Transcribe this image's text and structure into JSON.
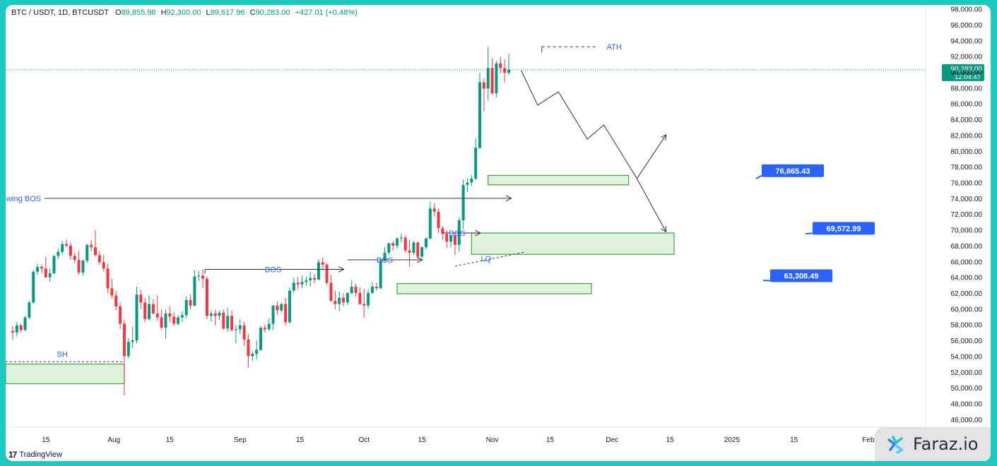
{
  "symbol": {
    "name": "BTC / USDT, 1D, BTCUSDT",
    "o_label": "O",
    "o": "89,855.98",
    "h_label": "H",
    "h": "92,300.00",
    "l_label": "L",
    "l": "89,617.96",
    "c_label": "C",
    "c": "90,283.00",
    "change": "+427.01 (+0.48%)"
  },
  "branding": {
    "tradingview": "TradingView",
    "watermark": "Faraz.io"
  },
  "colors": {
    "up": "#089981",
    "down": "#f23645",
    "zone_fill": "#dff2dc",
    "zone_stroke": "#43a047",
    "label_blue": "#2962ff",
    "text_blue": "#2962ff",
    "price_tag": "#089981",
    "frame": "#1ec9bf"
  },
  "chart_data": {
    "type": "candlestick",
    "y_axis": {
      "ticks": [
        "98,000.00",
        "96,000.00",
        "94,000.00",
        "92,000.00",
        "90,000.00",
        "88,000.00",
        "86,000.00",
        "84,000.00",
        "82,000.00",
        "80,000.00",
        "78,000.00",
        "76,000.00",
        "74,000.00",
        "72,000.00",
        "70,000.00",
        "68,000.00",
        "66,000.00",
        "64,000.00",
        "62,000.00",
        "60,000.00",
        "58,000.00",
        "56,000.00",
        "54,000.00",
        "52,000.00",
        "50,000.00",
        "48,000.00",
        "46,000.00"
      ],
      "range": [
        45000,
        98500
      ]
    },
    "x_axis": {
      "ticks": [
        "15",
        "Aug",
        "15",
        "Sep",
        "15",
        "Oct",
        "15",
        "Nov",
        "15",
        "Dec",
        "15",
        "2025",
        "15",
        "Feb"
      ]
    },
    "current_price": {
      "value": "90,283.00",
      "countdown": "12:04:47"
    },
    "candles": [
      [
        57200,
        57800,
        56100,
        57000
      ],
      [
        57000,
        58300,
        56500,
        57900
      ],
      [
        57900,
        58100,
        57000,
        57300
      ],
      [
        57300,
        59100,
        57200,
        58900
      ],
      [
        58900,
        61000,
        58700,
        60800
      ],
      [
        60800,
        64900,
        60600,
        64700
      ],
      [
        64700,
        65700,
        64300,
        65300
      ],
      [
        65300,
        65600,
        64500,
        65100
      ],
      [
        65100,
        66600,
        63900,
        64000
      ],
      [
        64000,
        65100,
        63400,
        64500
      ],
      [
        64500,
        66800,
        64400,
        66700
      ],
      [
        66700,
        67600,
        66300,
        67200
      ],
      [
        67200,
        68600,
        66900,
        68200
      ],
      [
        68200,
        68800,
        67800,
        68000
      ],
      [
        68000,
        68400,
        66200,
        66700
      ],
      [
        66700,
        67100,
        65800,
        66200
      ],
      [
        66200,
        67400,
        64300,
        64600
      ],
      [
        64600,
        66300,
        64200,
        66100
      ],
      [
        66100,
        68200,
        65800,
        68100
      ],
      [
        68100,
        68700,
        67300,
        67800
      ],
      [
        67800,
        70000,
        66600,
        66800
      ],
      [
        66800,
        67300,
        65600,
        65900
      ],
      [
        65900,
        66800,
        64700,
        65100
      ],
      [
        65100,
        65700,
        62000,
        62600
      ],
      [
        62600,
        63800,
        61300,
        61700
      ],
      [
        61700,
        62300,
        59800,
        60300
      ],
      [
        60300,
        60800,
        57400,
        58100
      ],
      [
        58100,
        58600,
        49000,
        54000
      ],
      [
        54000,
        56300,
        53700,
        55800
      ],
      [
        55800,
        57700,
        55000,
        56000
      ],
      [
        56000,
        62800,
        55600,
        61800
      ],
      [
        61800,
        62400,
        60000,
        60800
      ],
      [
        60800,
        61400,
        58300,
        58700
      ],
      [
        58700,
        61700,
        58500,
        60600
      ],
      [
        60600,
        61200,
        59300,
        59400
      ],
      [
        59400,
        61700,
        58500,
        58900
      ],
      [
        58900,
        59900,
        57300,
        57600
      ],
      [
        57600,
        59900,
        56200,
        59400
      ],
      [
        59400,
        60300,
        58300,
        59000
      ],
      [
        59000,
        59500,
        57800,
        58100
      ],
      [
        58100,
        59200,
        57900,
        58900
      ],
      [
        58900,
        59700,
        58300,
        59200
      ],
      [
        59200,
        61600,
        58800,
        61100
      ],
      [
        61100,
        61800,
        59900,
        60400
      ],
      [
        60400,
        64900,
        60300,
        64100
      ],
      [
        64100,
        64800,
        63500,
        64200
      ],
      [
        64200,
        65000,
        62600,
        63800
      ],
      [
        63800,
        64100,
        58700,
        59100
      ],
      [
        59100,
        59800,
        58400,
        59400
      ],
      [
        59400,
        59900,
        57900,
        59100
      ],
      [
        59100,
        59800,
        58600,
        59500
      ],
      [
        59500,
        59900,
        57300,
        57500
      ],
      [
        57500,
        60100,
        57100,
        59100
      ],
      [
        59100,
        59800,
        57100,
        57300
      ],
      [
        57300,
        58000,
        55600,
        57400
      ],
      [
        57400,
        58700,
        56800,
        57900
      ],
      [
        57900,
        58400,
        55300,
        56100
      ],
      [
        56100,
        56800,
        52500,
        54000
      ],
      [
        54000,
        54600,
        53400,
        54300
      ],
      [
        54300,
        56000,
        53600,
        54800
      ],
      [
        54800,
        57800,
        54600,
        57600
      ],
      [
        57600,
        58000,
        57000,
        57400
      ],
      [
        57400,
        58800,
        57200,
        58100
      ],
      [
        58100,
        60500,
        57300,
        60400
      ],
      [
        60400,
        60900,
        59200,
        59800
      ],
      [
        59800,
        60800,
        59500,
        60600
      ],
      [
        60600,
        61400,
        57900,
        58300
      ],
      [
        58300,
        62700,
        58100,
        62300
      ],
      [
        62300,
        63900,
        62000,
        63300
      ],
      [
        63300,
        64000,
        62500,
        63100
      ],
      [
        63100,
        64200,
        62600,
        63400
      ],
      [
        63400,
        64100,
        62900,
        63600
      ],
      [
        63600,
        64700,
        62800,
        63900
      ],
      [
        63900,
        64400,
        63200,
        63700
      ],
      [
        63700,
        66300,
        63600,
        65900
      ],
      [
        65900,
        66500,
        65000,
        65600
      ],
      [
        65600,
        65800,
        63000,
        63300
      ],
      [
        63300,
        64300,
        60900,
        61000
      ],
      [
        61000,
        62300,
        59900,
        60600
      ],
      [
        60600,
        62200,
        59700,
        61400
      ],
      [
        61400,
        62000,
        60300,
        60800
      ],
      [
        60800,
        62100,
        60500,
        62000
      ],
      [
        62000,
        63600,
        61800,
        62800
      ],
      [
        62800,
        63200,
        61500,
        62000
      ],
      [
        62000,
        62700,
        60500,
        60600
      ],
      [
        60600,
        62500,
        58900,
        60400
      ],
      [
        60400,
        62400,
        60000,
        62000
      ],
      [
        62000,
        63400,
        61900,
        62800
      ],
      [
        62800,
        63300,
        62300,
        62600
      ],
      [
        62600,
        66500,
        62500,
        66100
      ],
      [
        66100,
        67800,
        66000,
        67100
      ],
      [
        67100,
        68400,
        66800,
        68300
      ],
      [
        68300,
        68600,
        67400,
        68000
      ],
      [
        68000,
        69100,
        67600,
        68900
      ],
      [
        68900,
        69500,
        68400,
        69000
      ],
      [
        69000,
        69300,
        67100,
        67400
      ],
      [
        67400,
        68800,
        65300,
        67100
      ],
      [
        67100,
        68600,
        66800,
        68400
      ],
      [
        68400,
        68500,
        66300,
        66600
      ],
      [
        66600,
        67900,
        66500,
        67800
      ],
      [
        67800,
        69100,
        67500,
        68900
      ],
      [
        68900,
        73600,
        68800,
        72700
      ],
      [
        72700,
        73400,
        71700,
        72300
      ],
      [
        72300,
        72700,
        69600,
        70200
      ],
      [
        70200,
        70500,
        68700,
        69500
      ],
      [
        69500,
        70000,
        67700,
        68500
      ],
      [
        68500,
        69400,
        67800,
        69300
      ],
      [
        69300,
        69700,
        66800,
        68100
      ],
      [
        68100,
        71600,
        67200,
        71200
      ],
      [
        71200,
        76400,
        70100,
        75700
      ],
      [
        75700,
        76500,
        74800,
        76000
      ],
      [
        76000,
        77000,
        75600,
        76500
      ],
      [
        76500,
        81600,
        76300,
        80400
      ],
      [
        80400,
        89900,
        80200,
        88700
      ],
      [
        88700,
        89200,
        85000,
        87900
      ],
      [
        87900,
        93200,
        86400,
        90500
      ],
      [
        90500,
        91700,
        87100,
        87300
      ],
      [
        87300,
        91400,
        86800,
        91100
      ],
      [
        91100,
        91900,
        89800,
        90500
      ],
      [
        90500,
        91600,
        88700,
        89900
      ],
      [
        89900,
        92300,
        89600,
        90300
      ]
    ],
    "zones": [
      {
        "from_index": -5,
        "to_index": 27,
        "top": 53000,
        "bottom": 50500,
        "label": "SH"
      },
      {
        "from_index": 93,
        "to_index": 140,
        "top": 63200,
        "bottom": 61900
      },
      {
        "from_index": 111,
        "to_index": 160,
        "top": 69600,
        "bottom": 66900
      },
      {
        "from_index": 115,
        "to_index": 149,
        "top": 76900,
        "bottom": 75700
      }
    ],
    "annotations": {
      "swing_bos_label": "Swing BOS",
      "swing_bos_price": 74000,
      "bos_1": "BOS",
      "bos_1_price": 65000,
      "bos_2": "BOS",
      "bos_2_price": 66200,
      "bos_3": "BOS",
      "bos_3_price": 69600,
      "lq": "LQ",
      "lq_from": 65400,
      "lq_to": 67200,
      "ath": "ATH",
      "ath_price": 93200,
      "sh_price": 53300
    },
    "price_labels": [
      "76,865.43",
      "69,572.99",
      "63,308.49"
    ],
    "projection_path": [
      [
        123,
        90200
      ],
      [
        127,
        85800
      ],
      [
        132,
        87500
      ],
      [
        139,
        81500
      ],
      [
        143,
        83300
      ],
      [
        151,
        76500
      ],
      [
        158,
        82000
      ]
    ],
    "projection_path_2": [
      [
        151,
        76500
      ],
      [
        158,
        69800
      ]
    ]
  }
}
